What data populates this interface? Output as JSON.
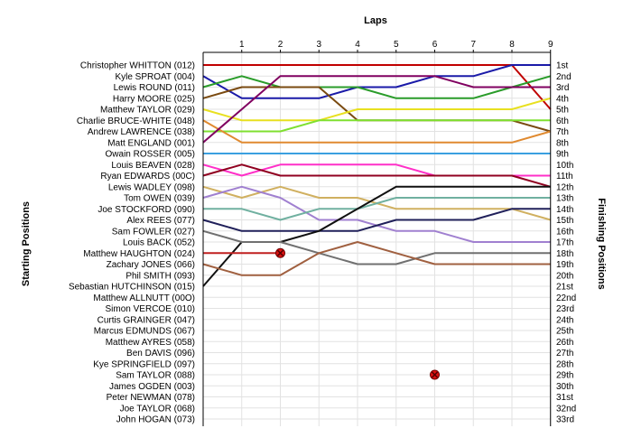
{
  "chart_data": {
    "type": "line",
    "xlabel": "Laps",
    "ylabel_left": "Starting Positions",
    "ylabel_right": "Finishing Positions",
    "x_ticks": [
      "1",
      "2",
      "3",
      "4",
      "5",
      "6",
      "7",
      "8",
      "9"
    ],
    "y_ticks_right": [
      "1st",
      "2nd",
      "3rd",
      "4th",
      "5th",
      "6th",
      "7th",
      "8th",
      "9th",
      "10th",
      "11th",
      "12th",
      "13th",
      "14th",
      "15th",
      "16th",
      "17th",
      "18th",
      "19th",
      "20th",
      "21st",
      "22nd",
      "23rd",
      "24th",
      "25th",
      "26th",
      "27th",
      "28th",
      "29th",
      "30th",
      "31st",
      "32nd",
      "33rd"
    ],
    "drivers": [
      "Christopher WHITTON (012)",
      "Kyle SPROAT (004)",
      "Lewis ROUND (011)",
      "Harry MOORE (025)",
      "Matthew TAYLOR (029)",
      "Charlie BRUCE-WHITE (048)",
      "Andrew LAWRENCE (038)",
      "Matt ENGLAND (001)",
      "Owain ROSSER (005)",
      "Louis BEAVEN (028)",
      "Ryan EDWARDS (00C)",
      "Lewis WADLEY (098)",
      "Tom OWEN (039)",
      "Joe STOCKFORD (090)",
      "Alex REES (077)",
      "Sam FOWLER (027)",
      "Louis BACK (052)",
      "Matthew HAUGHTON (024)",
      "Zachary JONES (066)",
      "Phil SMITH (093)",
      "Sebastian HUTCHINSON (015)",
      "Matthew ALLNUTT (00O)",
      "Simon VERCOE (010)",
      "Curtis GRAINGER (047)",
      "Marcus EDMUNDS (067)",
      "Matthew AYRES (058)",
      "Ben DAVIS (096)",
      "Kye SPRINGFIELD (097)",
      "Sam TAYLOR (088)",
      "James OGDEN (003)",
      "Peter NEWMAN (078)",
      "Joe TAYLOR (068)",
      "John HOGAN (073)"
    ],
    "series": [
      {
        "color": "#c00000",
        "positions": [
          1,
          1,
          1,
          1,
          1,
          1,
          1,
          1,
          1,
          5
        ]
      },
      {
        "color": "#1a1aa8",
        "positions": [
          2,
          4,
          4,
          4,
          3,
          3,
          2,
          2,
          1,
          1
        ]
      },
      {
        "color": "#2a9c2a",
        "positions": [
          3,
          2,
          3,
          3,
          3,
          4,
          4,
          4,
          3,
          2
        ]
      },
      {
        "color": "#7a4a10",
        "positions": [
          4,
          3,
          3,
          3,
          6,
          6,
          6,
          6,
          6,
          7
        ]
      },
      {
        "color": "#e8e020",
        "positions": [
          5,
          6,
          6,
          6,
          5,
          5,
          5,
          5,
          5,
          4
        ]
      },
      {
        "color": "#7fe030",
        "positions": [
          7,
          7,
          7,
          6,
          6,
          6,
          6,
          6,
          6,
          6
        ]
      },
      {
        "color": "#e08a30",
        "positions": [
          6,
          8,
          8,
          8,
          8,
          8,
          8,
          8,
          8,
          7
        ]
      },
      {
        "color": "#800060",
        "positions": [
          8,
          5,
          2,
          2,
          2,
          2,
          2,
          3,
          3,
          3
        ]
      },
      {
        "color": "#3aa0e0",
        "positions": [
          9,
          9,
          9,
          9,
          9,
          9,
          9,
          9,
          9,
          9
        ]
      },
      {
        "color": "#ff30c8",
        "positions": [
          10,
          11,
          10,
          10,
          10,
          10,
          11,
          11,
          11,
          11
        ]
      },
      {
        "color": "#900020",
        "positions": [
          11,
          10,
          11,
          11,
          11,
          11,
          11,
          11,
          11,
          12
        ]
      },
      {
        "color": "#d0b060",
        "positions": [
          12,
          13,
          12,
          13,
          13,
          14,
          14,
          14,
          14,
          15
        ]
      },
      {
        "color": "#a080d0",
        "positions": [
          13,
          12,
          13,
          15,
          15,
          16,
          16,
          17,
          17,
          17
        ]
      },
      {
        "color": "#70b0a0",
        "positions": [
          14,
          14,
          15,
          14,
          14,
          13,
          13,
          13,
          13,
          13
        ]
      },
      {
        "color": "#20205a",
        "positions": [
          15,
          16,
          16,
          16,
          16,
          15,
          15,
          15,
          14,
          14
        ]
      },
      {
        "color": "#101010",
        "positions": [
          21,
          17,
          17,
          16,
          14,
          12,
          12,
          12,
          12,
          12
        ]
      },
      {
        "color": "#707070",
        "positions": [
          16,
          17,
          17,
          18,
          19,
          19,
          18,
          18,
          18,
          18
        ]
      },
      {
        "color": "#c02020",
        "positions": [
          18,
          18,
          18,
          null,
          null,
          null,
          null,
          null,
          null,
          null
        ]
      },
      {
        "color": "#a06040",
        "positions": [
          19,
          20,
          20,
          18,
          17,
          18,
          19,
          19,
          19,
          19
        ]
      }
    ],
    "retirements": [
      [
        2,
        18
      ],
      [
        6,
        29
      ]
    ]
  }
}
